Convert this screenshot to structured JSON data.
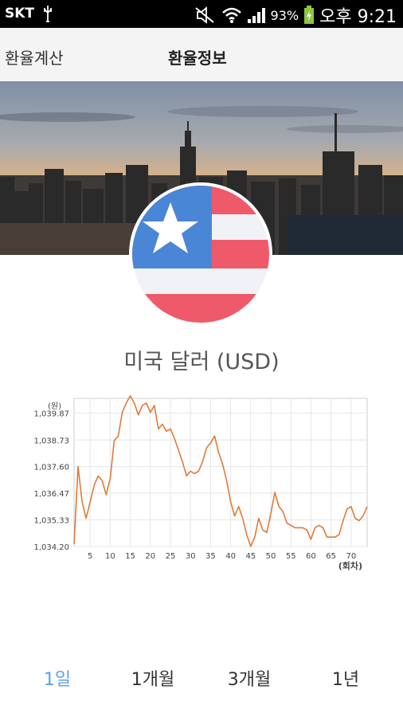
{
  "status_bar": {
    "carrier": "SKT",
    "battery_percent": "93%",
    "time": "오후 9:21"
  },
  "tabs": [
    {
      "label": "환율계산",
      "active": false
    },
    {
      "label": "환율정보",
      "active": true
    }
  ],
  "currency": {
    "title": "미국 달러 (USD)"
  },
  "periods": [
    {
      "label": "1일",
      "active": true
    },
    {
      "label": "1개월",
      "active": false
    },
    {
      "label": "3개월",
      "active": false
    },
    {
      "label": "1년",
      "active": false
    }
  ],
  "chart_data": {
    "type": "line",
    "title": "",
    "xlabel": "(회차)",
    "ylabel": "(원)",
    "y_ticks": [
      "1,039.87",
      "1,038.73",
      "1,037.60",
      "1,036.47",
      "1,035.33",
      "1,034.20"
    ],
    "x_ticks": [
      "5",
      "10",
      "15",
      "20",
      "25",
      "30",
      "35",
      "40",
      "45",
      "50",
      "55",
      "60",
      "65",
      "70"
    ],
    "ylim": [
      1034.2,
      1040.5
    ],
    "xlim": [
      1,
      74
    ],
    "line_color": "#e07a3a",
    "series": [
      {
        "x": [
          1,
          2,
          3,
          4,
          5,
          6,
          7,
          8,
          9,
          10,
          11,
          12,
          13,
          14,
          15,
          16,
          17,
          18,
          19,
          20,
          21,
          22,
          23,
          24,
          25,
          26,
          27,
          28,
          29,
          30,
          31,
          32,
          33,
          34,
          35,
          36,
          37,
          38,
          39,
          40,
          41,
          42,
          43,
          44,
          45,
          46,
          47,
          48,
          49,
          50,
          51,
          52,
          53,
          54,
          55,
          56,
          57,
          58,
          59,
          60,
          61,
          62,
          63,
          64,
          65,
          66,
          67,
          68,
          69,
          70,
          71,
          72,
          73,
          74
        ],
        "values": [
          1034.3,
          1037.6,
          1036.1,
          1035.4,
          1036.1,
          1036.8,
          1037.2,
          1037.0,
          1036.4,
          1037.1,
          1038.7,
          1038.9,
          1039.9,
          1040.3,
          1040.6,
          1040.3,
          1039.8,
          1040.2,
          1040.3,
          1039.9,
          1040.2,
          1039.2,
          1039.4,
          1039.1,
          1039.2,
          1038.8,
          1038.3,
          1037.8,
          1037.2,
          1037.4,
          1037.3,
          1037.4,
          1037.8,
          1038.4,
          1038.6,
          1038.9,
          1038.2,
          1037.7,
          1037.0,
          1036.1,
          1035.5,
          1035.9,
          1035.4,
          1034.7,
          1034.2,
          1034.6,
          1035.4,
          1034.9,
          1034.8,
          1035.6,
          1036.5,
          1035.9,
          1035.7,
          1035.2,
          1035.1,
          1035.0,
          1035.0,
          1035.0,
          1034.9,
          1034.5,
          1035.0,
          1035.1,
          1035.0,
          1034.6,
          1034.6,
          1034.6,
          1034.7,
          1035.3,
          1035.8,
          1035.9,
          1035.4,
          1035.3,
          1035.5,
          1035.9
        ]
      }
    ]
  }
}
